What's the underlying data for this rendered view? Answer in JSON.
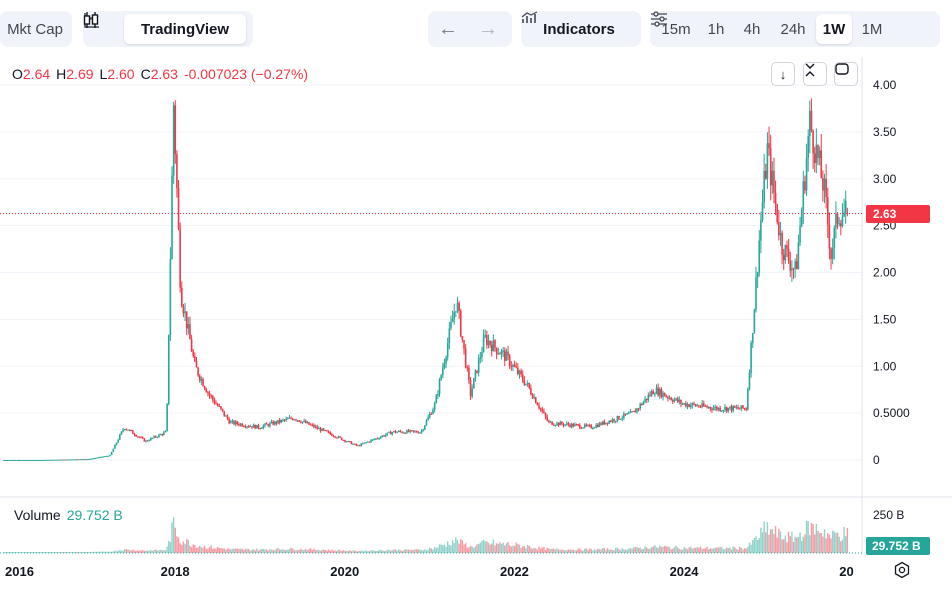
{
  "toolbar": {
    "mkt_cap": "Mkt Cap",
    "tradingview": "TradingView",
    "indicators": "Indicators",
    "timeframes": [
      "15m",
      "1h",
      "4h",
      "24h",
      "1W",
      "1M"
    ],
    "active_timeframe": "1W"
  },
  "legend": {
    "o_key": "O",
    "o_val": "2.64",
    "h_key": "H",
    "h_val": "2.69",
    "l_key": "L",
    "l_val": "2.60",
    "c_key": "C",
    "c_val": "2.63",
    "change": "-0.007023 (−0.27%)"
  },
  "volume_legend": {
    "label": "Volume",
    "value": "29.752 B"
  },
  "last_price_tag": "2.63",
  "volume_tag": "29.752 B",
  "colors": {
    "up": "#26a69a",
    "down": "#f23645",
    "last_line": "#f23645"
  },
  "chart_data": {
    "type": "candlestick",
    "x_tick_labels": [
      "2016",
      "2018",
      "2020",
      "2022",
      "2024",
      "20"
    ],
    "y_tick_labels": [
      "4.00",
      "3.50",
      "3.00",
      "2.50",
      "2.00",
      "1.50",
      "1.00",
      "0.5000",
      "0"
    ],
    "volume_tick_labels": [
      "250 B"
    ],
    "ylim": [
      0,
      4.0
    ],
    "last_value": 2.63,
    "price_series": [
      {
        "date": "2016-01",
        "close": 0.0
      },
      {
        "date": "2016-06",
        "close": 0.0
      },
      {
        "date": "2017-01",
        "close": 0.01
      },
      {
        "date": "2017-04",
        "close": 0.05
      },
      {
        "date": "2017-06",
        "close": 0.35
      },
      {
        "date": "2017-09",
        "close": 0.2
      },
      {
        "date": "2017-12",
        "close": 0.3
      },
      {
        "date": "2018-01",
        "close": 3.8
      },
      {
        "date": "2018-02",
        "close": 1.8
      },
      {
        "date": "2018-04",
        "close": 1.0
      },
      {
        "date": "2018-06",
        "close": 0.7
      },
      {
        "date": "2018-09",
        "close": 0.4
      },
      {
        "date": "2019-01",
        "close": 0.35
      },
      {
        "date": "2019-06",
        "close": 0.45
      },
      {
        "date": "2019-12",
        "close": 0.25
      },
      {
        "date": "2020-03",
        "close": 0.15
      },
      {
        "date": "2020-08",
        "close": 0.3
      },
      {
        "date": "2020-12",
        "close": 0.3
      },
      {
        "date": "2021-02",
        "close": 0.6
      },
      {
        "date": "2021-05",
        "close": 1.7
      },
      {
        "date": "2021-07",
        "close": 0.7
      },
      {
        "date": "2021-09",
        "close": 1.3
      },
      {
        "date": "2021-12",
        "close": 1.1
      },
      {
        "date": "2022-03",
        "close": 0.8
      },
      {
        "date": "2022-06",
        "close": 0.4
      },
      {
        "date": "2022-12",
        "close": 0.35
      },
      {
        "date": "2023-06",
        "close": 0.5
      },
      {
        "date": "2023-09",
        "close": 0.75
      },
      {
        "date": "2024-01",
        "close": 0.6
      },
      {
        "date": "2024-06",
        "close": 0.55
      },
      {
        "date": "2024-10",
        "close": 0.55
      },
      {
        "date": "2024-11",
        "close": 1.5
      },
      {
        "date": "2024-12",
        "close": 2.5
      },
      {
        "date": "2025-01",
        "close": 3.3
      },
      {
        "date": "2025-03",
        "close": 2.3
      },
      {
        "date": "2025-05",
        "close": 2.0
      },
      {
        "date": "2025-07",
        "close": 3.6
      },
      {
        "date": "2025-09",
        "close": 2.9
      },
      {
        "date": "2025-10",
        "close": 2.2
      },
      {
        "date": "2025-11",
        "close": 2.63
      }
    ]
  }
}
